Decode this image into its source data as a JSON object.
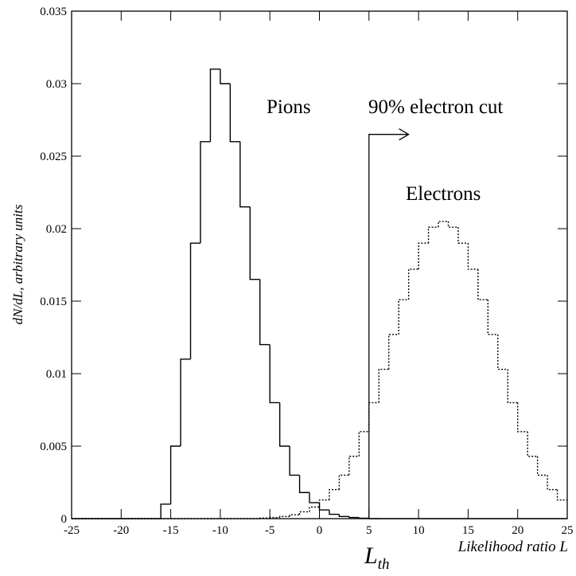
{
  "chart_data": {
    "type": "histogram",
    "y_label": "dN/dL, arbitrary units",
    "x_label": "Likelihood ratio L",
    "xlim": [
      -25,
      25
    ],
    "ylim": [
      0,
      0.035
    ],
    "xticks": [
      -25,
      -20,
      -15,
      -10,
      -5,
      0,
      5,
      10,
      15,
      20,
      25
    ],
    "yticks": [
      0,
      0.005,
      0.01,
      0.015,
      0.02,
      0.025,
      0.03,
      0.035
    ],
    "bins": [
      -25,
      -24,
      -23,
      -22,
      -21,
      -20,
      -19,
      -18,
      -17,
      -16,
      -15,
      -14,
      -13,
      -12,
      -11,
      -10,
      -9,
      -8,
      -7,
      -6,
      -5,
      -4,
      -3,
      -2,
      -1,
      0,
      1,
      2,
      3,
      4,
      5,
      6,
      7,
      8,
      9,
      10,
      11,
      12,
      13,
      14,
      15,
      16,
      17,
      18,
      19,
      20,
      21,
      22,
      23,
      24,
      25
    ],
    "series": [
      {
        "name": "Pions",
        "color": "#000000",
        "dashed": false,
        "values": [
          0,
          0,
          0,
          0,
          0,
          0,
          0,
          0,
          0,
          0.001,
          0.005,
          0.011,
          0.019,
          0.026,
          0.031,
          0.03,
          0.026,
          0.0215,
          0.0165,
          0.012,
          0.008,
          0.005,
          0.003,
          0.0018,
          0.0011,
          0.0006,
          0.0003,
          0.00015,
          8e-05,
          3e-05,
          0,
          0,
          0,
          0,
          0,
          0,
          0,
          0,
          0,
          0,
          0,
          0,
          0,
          0,
          0,
          0,
          0,
          0,
          0,
          0
        ]
      },
      {
        "name": "Electrons",
        "color": "#000000",
        "dashed": true,
        "values": [
          0,
          0,
          0,
          0,
          0,
          0,
          0,
          0,
          0,
          0,
          0,
          0,
          0,
          0,
          0,
          0,
          0,
          0,
          0,
          4e-05,
          8e-05,
          0.00015,
          0.00027,
          0.00047,
          0.0008,
          0.00129,
          0.002,
          0.003,
          0.0043,
          0.006,
          0.008,
          0.0103,
          0.0127,
          0.0151,
          0.0172,
          0.019,
          0.0201,
          0.0205,
          0.0201,
          0.019,
          0.0172,
          0.0151,
          0.0127,
          0.0103,
          0.008,
          0.006,
          0.0043,
          0.003,
          0.002,
          0.00129
        ]
      }
    ],
    "cut": {
      "label": "90% electron cut",
      "x": 5,
      "height": 0.0265,
      "arrow_to": 9
    },
    "threshold_label": {
      "main": "L",
      "sub": "th"
    }
  }
}
